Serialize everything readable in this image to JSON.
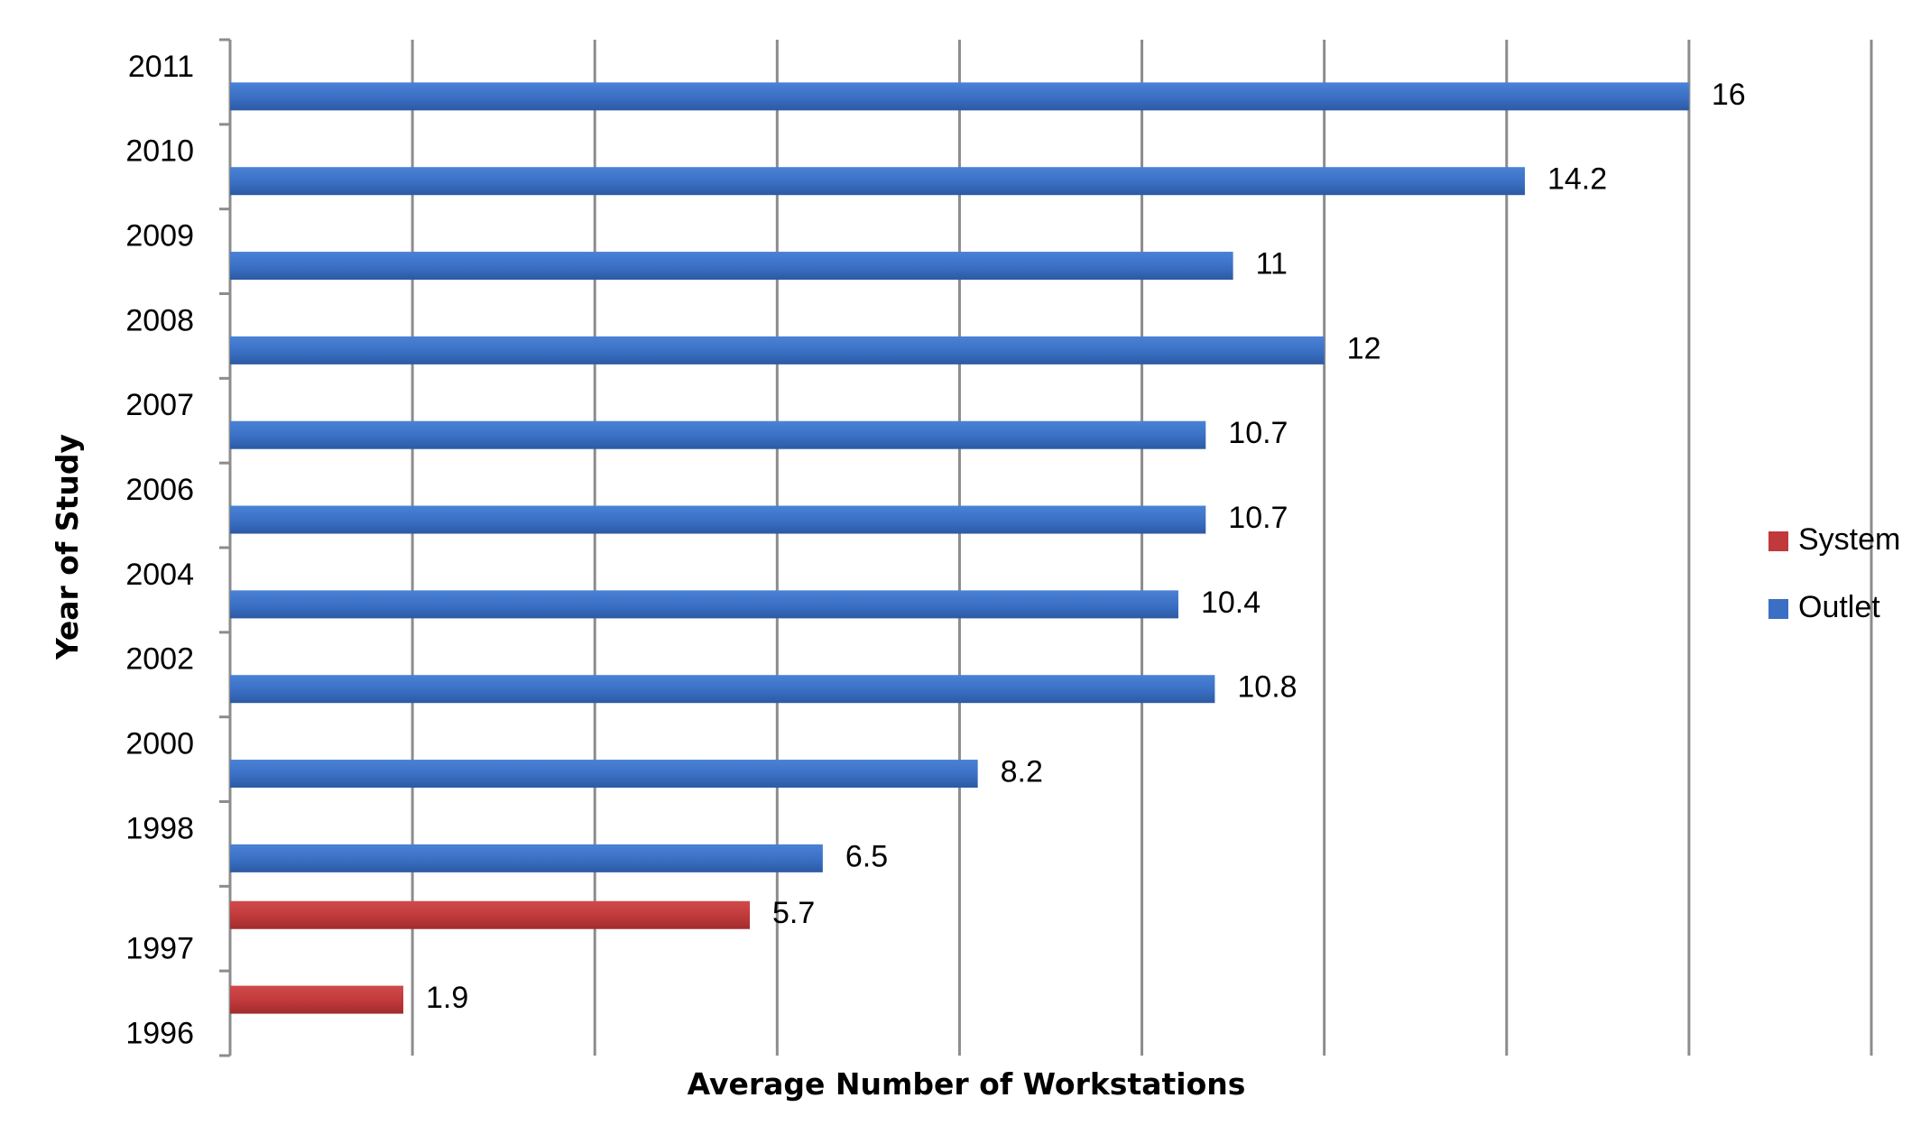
{
  "chart_data": {
    "type": "bar",
    "orientation": "horizontal",
    "xlabel": "Average Number of Workstations",
    "ylabel": "Year of Study",
    "xlim": [
      0,
      18
    ],
    "x_gridline_step": 2,
    "grid": "vertical gridlines",
    "legend_position": "right",
    "categories": [
      "2011",
      "2010",
      "2009",
      "2008",
      "2007",
      "2006",
      "2004",
      "2002",
      "2000",
      "1998",
      "1997",
      "1996"
    ],
    "series": [
      {
        "name": "System",
        "color": "#c0393b",
        "values": [
          null,
          null,
          null,
          null,
          null,
          null,
          null,
          null,
          null,
          null,
          5.7,
          1.9
        ]
      },
      {
        "name": "Outlet",
        "color": "#3a6fc4",
        "values": [
          16,
          14.2,
          11,
          12,
          10.7,
          10.7,
          10.4,
          10.8,
          8.2,
          6.5,
          null,
          null
        ]
      }
    ],
    "data_labels": [
      "16",
      "14.2",
      "11",
      "12",
      "10.7",
      "10.7",
      "10.4",
      "10.8",
      "8.2",
      "6.5",
      "5.7",
      "1.9"
    ]
  }
}
